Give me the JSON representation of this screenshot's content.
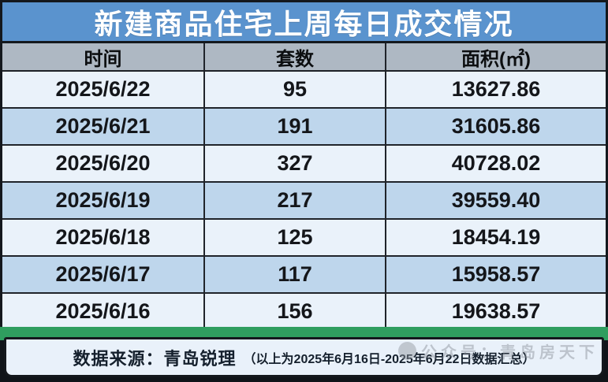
{
  "title": "新建商品住宅上周每日成交情况",
  "chart_data": {
    "type": "table",
    "title": "新建商品住宅上周每日成交情况",
    "columns": [
      "时间",
      "套数",
      "面积(㎡)"
    ],
    "rows": [
      [
        "2025/6/22",
        "95",
        "13627.86"
      ],
      [
        "2025/6/21",
        "191",
        "31605.86"
      ],
      [
        "2025/6/20",
        "327",
        "40728.02"
      ],
      [
        "2025/6/19",
        "217",
        "39559.40"
      ],
      [
        "2025/6/18",
        "125",
        "18454.19"
      ],
      [
        "2025/6/17",
        "117",
        "15958.57"
      ],
      [
        "2025/6/16",
        "156",
        "19638.57"
      ]
    ],
    "layout_hints": {
      "row_striping": "alternating light/medium blue",
      "header_style": "gray band, black bold text",
      "title_style": "blue band, white bold text"
    }
  },
  "footer": {
    "source": "数据来源：青岛锐理",
    "note": "（以上为2025年6月16日-2025年6月22日数据汇总）"
  },
  "watermark": {
    "text": "公众号：青岛房天下",
    "icon": "circle-badge-icon"
  },
  "colors": {
    "title_bg": "#5a93ce",
    "title_text": "#ffffff",
    "header_bg": "#aeb8c3",
    "row_light": "#eaf2fa",
    "row_medium": "#bed6ec",
    "border": "#20242a",
    "green_accent": "#2f9e5f",
    "footer_bg": "#e9f1fa"
  }
}
